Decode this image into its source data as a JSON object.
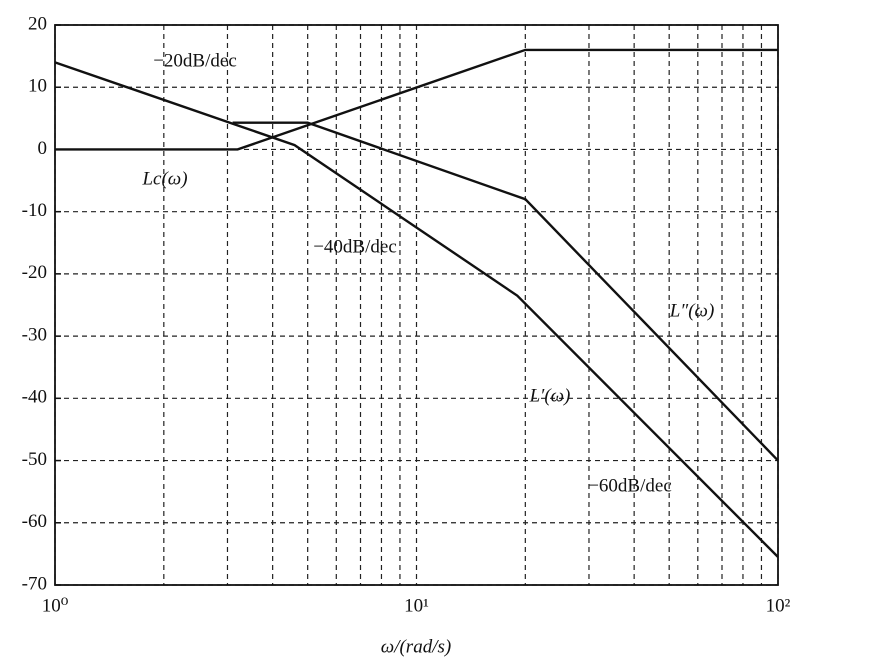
{
  "chart_data": {
    "type": "line",
    "x_label": "ω/(rad/s)",
    "log_x": true,
    "grid": true,
    "minor_grid": true,
    "color": "#111111",
    "xlim": [
      1,
      100
    ],
    "xticks": [
      {
        "value": 1,
        "label": "10⁰"
      },
      {
        "value": 10,
        "label": "10¹"
      },
      {
        "value": 100,
        "label": "10²"
      }
    ],
    "ylim": [
      -70,
      20
    ],
    "yticks": [
      -70,
      -60,
      -50,
      -40,
      -30,
      -20,
      -10,
      0,
      10,
      20
    ],
    "series": [
      {
        "name": "Lc(ω)",
        "color": "#111111",
        "x": [
          1,
          3.2,
          20,
          100
        ],
        "values": [
          0,
          0,
          16,
          16
        ]
      },
      {
        "name": "L′(ω)",
        "color": "#111111",
        "x": [
          1,
          4.6,
          19,
          100
        ],
        "values": [
          14,
          0.7,
          -23.5,
          -65.5
        ]
      },
      {
        "name": "L″(ω)",
        "color": "#111111",
        "x": [
          3.1,
          5,
          20,
          100
        ],
        "values": [
          4.3,
          4.3,
          -8,
          -50
        ]
      }
    ],
    "annotations": [
      "−20dB/dec",
      "−40dB/dec",
      "−60dB/dec"
    ]
  }
}
